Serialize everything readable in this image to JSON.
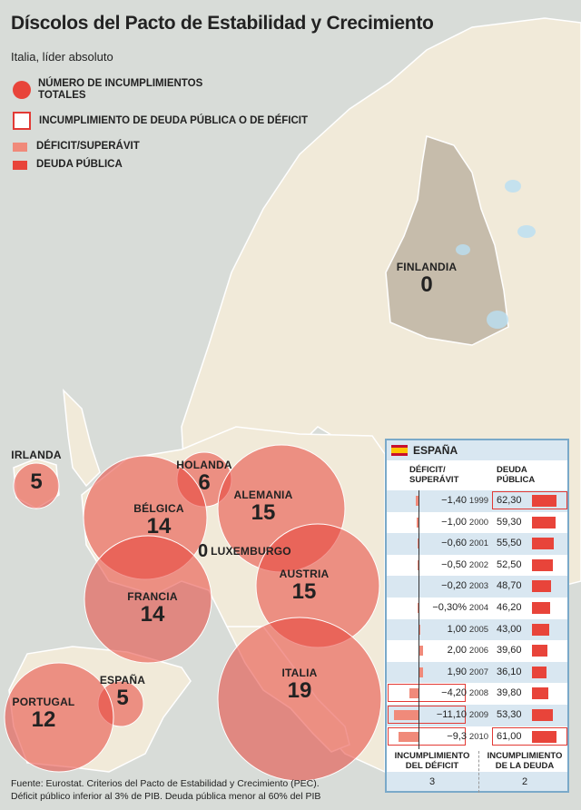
{
  "title": "Díscolos del Pacto de Estabilidad y Crecimiento",
  "subtitle": "Italia, líder absoluto",
  "legend": {
    "total": "NÚMERO DE INCUMPLIMIENTOS TOTALES",
    "breach": "INCUMPLIMIENTO DE DEUDA PÚBLICA O DE DÉFICIT",
    "deficit": "DÉFICIT/SUPERÁVIT",
    "debt": "DEUDA PÚBLICA"
  },
  "colors": {
    "circle": "#e8443a",
    "deficit_bar": "#f08a7a",
    "debt_bar": "#e8443a",
    "land": "#f1ead9",
    "sea": "#d8dcd8",
    "panel_border": "#7aa9c9"
  },
  "countries": [
    {
      "name": "IRLANDA",
      "value": "5"
    },
    {
      "name": "HOLANDA",
      "value": "6"
    },
    {
      "name": "BÉLGICA",
      "value": "14"
    },
    {
      "name": "ALEMANIA",
      "value": "15"
    },
    {
      "name": "LUXEMBURGO",
      "value": "0"
    },
    {
      "name": "AUSTRIA",
      "value": "15"
    },
    {
      "name": "FRANCIA",
      "value": "14"
    },
    {
      "name": "ITALIA",
      "value": "19"
    },
    {
      "name": "ESPAÑA",
      "value": "5"
    },
    {
      "name": "PORTUGAL",
      "value": "12"
    },
    {
      "name": "FINLANDIA",
      "value": "0"
    }
  ],
  "spain": {
    "title": "ESPAÑA",
    "col_deficit": "DÉFICIT/\nSUPERÁVIT",
    "col_debt": "DEUDA\nPÚBLICA",
    "rows": [
      {
        "year": "1999",
        "deficit": "−1,40",
        "debt": "62,30",
        "deficit_value": -1.4,
        "debt_value": 62.3,
        "deficit_breach": false,
        "debt_breach": true
      },
      {
        "year": "2000",
        "deficit": "−1,00",
        "debt": "59,30",
        "deficit_value": -1.0,
        "debt_value": 59.3,
        "deficit_breach": false,
        "debt_breach": false
      },
      {
        "year": "2001",
        "deficit": "−0,60",
        "debt": "55,50",
        "deficit_value": -0.6,
        "debt_value": 55.5,
        "deficit_breach": false,
        "debt_breach": false
      },
      {
        "year": "2002",
        "deficit": "−0,50",
        "debt": "52,50",
        "deficit_value": -0.5,
        "debt_value": 52.5,
        "deficit_breach": false,
        "debt_breach": false
      },
      {
        "year": "2003",
        "deficit": "−0,20",
        "debt": "48,70",
        "deficit_value": -0.2,
        "debt_value": 48.7,
        "deficit_breach": false,
        "debt_breach": false
      },
      {
        "year": "2004",
        "deficit": "−0,30%",
        "debt": "46,20",
        "deficit_value": -0.3,
        "debt_value": 46.2,
        "deficit_breach": false,
        "debt_breach": false
      },
      {
        "year": "2005",
        "deficit": "1,00",
        "debt": "43,00",
        "deficit_value": 1.0,
        "debt_value": 43.0,
        "deficit_breach": false,
        "debt_breach": false
      },
      {
        "year": "2006",
        "deficit": "2,00",
        "debt": "39,60",
        "deficit_value": 2.0,
        "debt_value": 39.6,
        "deficit_breach": false,
        "debt_breach": false
      },
      {
        "year": "2007",
        "deficit": "1,90",
        "debt": "36,10",
        "deficit_value": 1.9,
        "debt_value": 36.1,
        "deficit_breach": false,
        "debt_breach": false
      },
      {
        "year": "2008",
        "deficit": "−4,20",
        "debt": "39,80",
        "deficit_value": -4.2,
        "debt_value": 39.8,
        "deficit_breach": true,
        "debt_breach": false
      },
      {
        "year": "2009",
        "deficit": "−11,10",
        "debt": "53,30",
        "deficit_value": -11.1,
        "debt_value": 53.3,
        "deficit_breach": true,
        "debt_breach": false
      },
      {
        "year": "2010",
        "deficit": "−9,3",
        "debt": "61,00",
        "deficit_value": -9.3,
        "debt_value": 61.0,
        "deficit_breach": true,
        "debt_breach": true
      }
    ],
    "foot_deficit": "INCUMPLIMIENTO\nDEL DÉFICIT",
    "foot_debt": "INCUMPLIMIENTO\nDE LA DEUDA",
    "count_deficit": "3",
    "count_debt": "2"
  },
  "source_lines": [
    "Fuente: Eurostat. Criterios del Pacto de Estabilidad y Crecimiento (PEC).",
    "Déficit público inferior al 3% de PIB. Deuda pública menor al 60% del PIB"
  ]
}
